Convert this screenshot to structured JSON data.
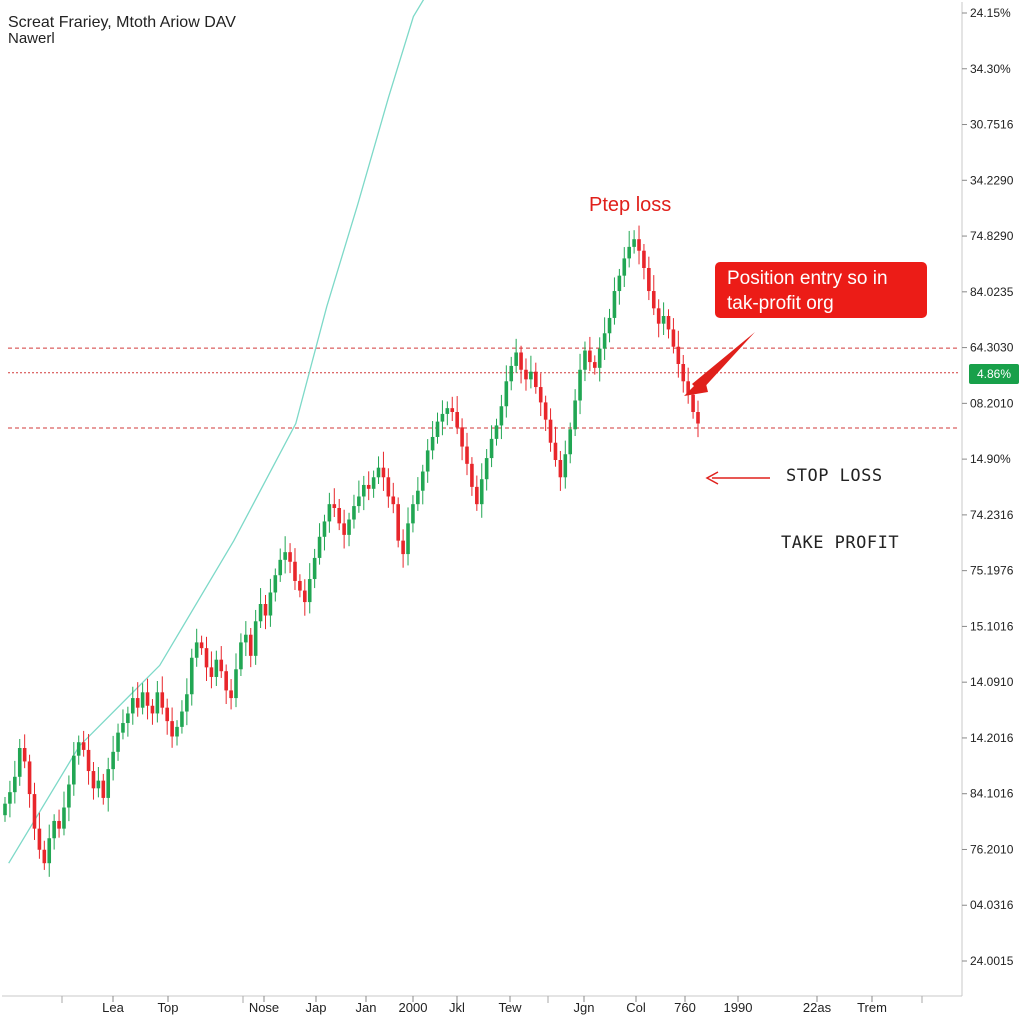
{
  "chart_data": {
    "type": "candlestick",
    "title": "Screat Frariey, Mtoth Ariow DAV",
    "subtitle": "Nawerl",
    "x_tick_labels": [
      "Lea",
      "Top",
      "Nose",
      "Jap",
      "Jan",
      "2000",
      "Jkl",
      "Tew",
      "Jgn",
      "Col",
      "760",
      "1990",
      "22as",
      "Trem"
    ],
    "y_tick_labels": [
      "24.15%",
      "34.30%",
      "30.7516",
      "34.2290",
      "74.8290",
      "84.0235",
      "64.3030",
      "08.2010",
      "14.90%",
      "74.2316",
      "75.1976",
      "15.1016",
      "14.0910",
      "14.2016",
      "84.1016",
      "76.2010",
      "04.0316",
      "24.0015"
    ],
    "price_badge": "4.86%",
    "annotations": {
      "peak_label": "Ptep loss",
      "callout": "Position entry so in tak-profit org",
      "stop_loss": "STOP LOSS",
      "take_profit": "TAKE PROFIT"
    },
    "levels_pct_from_top": [
      34.0,
      36.4,
      41.8
    ],
    "closes": [
      3.6,
      4.2,
      5.0,
      6.5,
      5.8,
      4.1,
      2.3,
      1.2,
      0.5,
      1.8,
      2.7,
      2.3,
      3.4,
      4.6,
      6.1,
      6.8,
      6.4,
      5.3,
      4.4,
      4.8,
      3.9,
      5.4,
      6.3,
      7.3,
      7.8,
      8.3,
      9.1,
      8.6,
      9.4,
      8.7,
      8.3,
      9.4,
      8.6,
      7.9,
      7.1,
      7.6,
      8.4,
      9.3,
      11.2,
      12.0,
      11.7,
      10.7,
      10.2,
      11.1,
      10.5,
      9.5,
      9.1,
      10.6,
      12.0,
      12.4,
      11.3,
      13.1,
      14.0,
      13.4,
      14.6,
      15.5,
      16.3,
      16.7,
      16.2,
      15.2,
      14.7,
      14.1,
      15.3,
      16.4,
      17.5,
      18.3,
      19.2,
      19.0,
      18.2,
      17.6,
      18.4,
      19.1,
      19.6,
      20.2,
      20.0,
      20.6,
      21.1,
      20.6,
      19.6,
      19.2,
      17.3,
      16.6,
      18.2,
      19.2,
      19.9,
      20.9,
      22.0,
      22.7,
      23.5,
      23.9,
      24.2,
      24.0,
      23.2,
      22.2,
      21.3,
      20.1,
      19.2,
      20.5,
      21.6,
      22.6,
      23.3,
      24.3,
      25.6,
      26.4,
      27.1,
      26.2,
      25.7,
      26.1,
      25.3,
      24.5,
      23.6,
      22.4,
      21.5,
      20.6,
      21.8,
      23.1,
      24.6,
      26.2,
      27.2,
      26.6,
      26.3,
      27.3,
      28.1,
      28.9,
      30.3,
      31.1,
      32.0,
      32.6,
      33.0,
      32.4,
      31.5,
      30.3,
      29.4,
      28.6,
      29.0,
      28.3,
      27.4,
      26.5,
      25.6,
      24.9,
      24.0,
      23.4
    ],
    "ma_points": [
      [
        0.6,
        0.5
      ],
      [
        12,
        6.6
      ],
      [
        25,
        10.8
      ],
      [
        37,
        17.3
      ],
      [
        47,
        23.4
      ],
      [
        52,
        29.5
      ],
      [
        57,
        34.8
      ],
      [
        62,
        40.4
      ],
      [
        66,
        44.6
      ],
      [
        72,
        47.8
      ],
      [
        76,
        50.5
      ],
      [
        80,
        52.6
      ],
      [
        84,
        54.6
      ],
      [
        87,
        56.2
      ],
      [
        89,
        57.4
      ],
      [
        92,
        59.1
      ],
      [
        96,
        62.0
      ],
      [
        100,
        64.2
      ],
      [
        104,
        65.5
      ],
      [
        108,
        66.6
      ],
      [
        112,
        67.9
      ]
    ],
    "y_value_range": [
      -1,
      34
    ],
    "grid": false,
    "legend": "none"
  }
}
